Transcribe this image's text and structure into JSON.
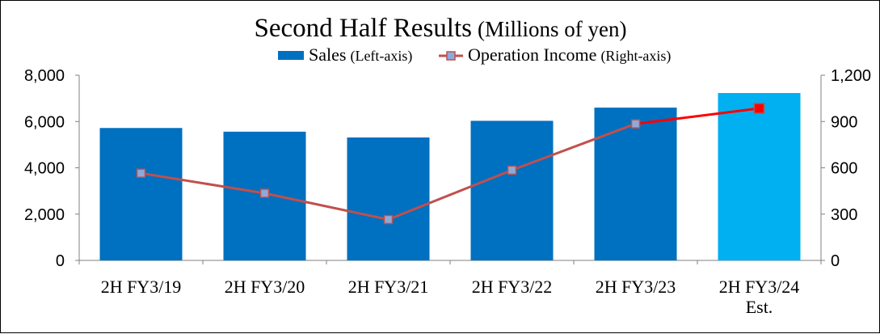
{
  "chart_data": {
    "type": "bar",
    "title": "Second Half Results",
    "title_unit": "(Millions of yen)",
    "categories": [
      "2H FY3/19",
      "2H FY3/20",
      "2H FY3/21",
      "2H FY3/22",
      "2H FY3/23",
      "2H FY3/24"
    ],
    "category_sublabels": [
      "",
      "",
      "",
      "",
      "",
      "Est."
    ],
    "series": [
      {
        "name": "Sales",
        "axis_note": "(Left-axis)",
        "type": "bar",
        "values": [
          5720,
          5560,
          5310,
          6030,
          6600,
          7230
        ],
        "colors": [
          "#0070C0",
          "#0070C0",
          "#0070C0",
          "#0070C0",
          "#0070C0",
          "#00B0F0"
        ]
      },
      {
        "name": "Operation Income",
        "axis_note": "(Right-axis)",
        "type": "line",
        "values": [
          565,
          435,
          265,
          585,
          885,
          985
        ],
        "line_colors": [
          "#C0504D",
          "#C0504D",
          "#C0504D",
          "#C0504D",
          "#FF0000"
        ],
        "marker_fill": [
          "#8EA9DB",
          "#8EA9DB",
          "#8EA9DB",
          "#8EA9DB",
          "#8EA9DB",
          "#FF0000"
        ],
        "marker_stroke": "#C0504D"
      }
    ],
    "y_left": {
      "ylim": [
        0,
        8000
      ],
      "ticks": [
        "0",
        "2,000",
        "4,000",
        "6,000",
        "8,000"
      ],
      "values": [
        0,
        2000,
        4000,
        6000,
        8000
      ]
    },
    "y_right": {
      "ylim": [
        0,
        1200
      ],
      "ticks": [
        "0",
        "300",
        "600",
        "900",
        "1,200"
      ],
      "values": [
        0,
        300,
        600,
        900,
        1200
      ]
    },
    "grid": false,
    "legend_position": "top-center"
  }
}
